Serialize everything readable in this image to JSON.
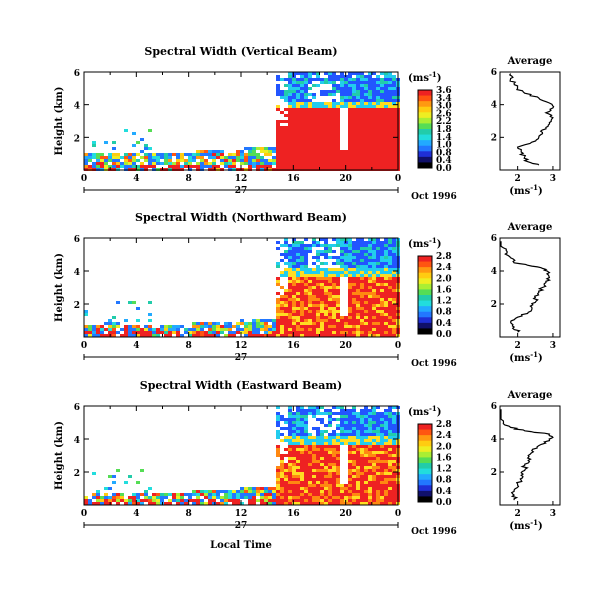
{
  "colors": {
    "scale": [
      "#000000",
      "#10106a",
      "#1f2fd6",
      "#2277ff",
      "#22aaff",
      "#22dddd",
      "#22ccaa",
      "#55dd55",
      "#aaee33",
      "#eeee22",
      "#ffcc11",
      "#ff9911",
      "#ff5511",
      "#ee2222"
    ],
    "red": "#ee2222",
    "cyan": "#22ccee",
    "blue": "#2255ff",
    "orange": "#ff8811",
    "yellow": "#ffdd22"
  },
  "shared": {
    "ylabel": "Height (km)",
    "xticks": [
      "0",
      "4",
      "8",
      "12",
      "16",
      "20",
      "0"
    ],
    "xunder": "27",
    "date": "Oct 1996",
    "ylim": [
      0,
      6
    ],
    "xlim": [
      0,
      24
    ],
    "unit": "(ms",
    "unit_exp": "-1",
    "unit_close": ")",
    "avg_title": "Average",
    "avg_xticks": [
      "2",
      "3"
    ],
    "avg_yticks": [
      "2",
      "4",
      "6"
    ],
    "xlabel": "Local Time"
  },
  "chart_data": [
    {
      "type": "heatmap",
      "title": "Spectral Width (Vertical Beam)",
      "yticks": [
        "2",
        "4",
        "6"
      ],
      "colorbar_ticks": [
        "3.6",
        "3.4",
        "3.0",
        "2.6",
        "2.2",
        "1.8",
        "1.4",
        "1.0",
        "0.8",
        "0.4",
        "0.0"
      ],
      "avg_profile": [
        [
          2.6,
          0.3
        ],
        [
          2.3,
          0.5
        ],
        [
          2.2,
          0.8
        ],
        [
          2.1,
          1.1
        ],
        [
          2.0,
          1.4
        ],
        [
          2.4,
          1.7
        ],
        [
          2.6,
          2.0
        ],
        [
          2.7,
          2.3
        ],
        [
          2.8,
          2.6
        ],
        [
          2.9,
          2.9
        ],
        [
          3.0,
          3.2
        ],
        [
          2.8,
          3.5
        ],
        [
          3.0,
          3.8
        ],
        [
          2.9,
          4.1
        ],
        [
          2.6,
          4.4
        ],
        [
          2.2,
          4.7
        ],
        [
          2.0,
          5.0
        ],
        [
          1.9,
          5.3
        ],
        [
          1.8,
          5.6
        ],
        [
          1.8,
          5.9
        ]
      ]
    },
    {
      "type": "heatmap",
      "title": "Spectral Width (Northward Beam)",
      "yticks": [
        "2",
        "4",
        "6"
      ],
      "colorbar_ticks": [
        "2.8",
        "2.4",
        "2.0",
        "1.6",
        "1.2",
        "0.8",
        "0.4",
        "0.0"
      ],
      "avg_profile": [
        [
          2.0,
          0.3
        ],
        [
          1.9,
          0.6
        ],
        [
          1.8,
          0.9
        ],
        [
          2.0,
          1.2
        ],
        [
          2.3,
          1.5
        ],
        [
          2.4,
          1.8
        ],
        [
          2.5,
          2.1
        ],
        [
          2.5,
          2.4
        ],
        [
          2.6,
          2.7
        ],
        [
          2.7,
          3.0
        ],
        [
          2.8,
          3.3
        ],
        [
          2.9,
          3.6
        ],
        [
          2.9,
          3.9
        ],
        [
          2.8,
          4.1
        ],
        [
          2.4,
          4.3
        ],
        [
          1.9,
          4.5
        ],
        [
          1.8,
          4.8
        ],
        [
          1.7,
          5.1
        ],
        [
          1.6,
          5.4
        ],
        [
          1.5,
          5.8
        ]
      ]
    },
    {
      "type": "heatmap",
      "title": "Spectral Width (Eastward Beam)",
      "yticks": [
        "2",
        "4",
        "6"
      ],
      "colorbar_ticks": [
        "2.8",
        "2.4",
        "2.0",
        "1.6",
        "1.2",
        "0.8",
        "0.4",
        "0.0"
      ],
      "avg_profile": [
        [
          1.9,
          0.3
        ],
        [
          1.9,
          0.6
        ],
        [
          1.9,
          0.9
        ],
        [
          2.0,
          1.2
        ],
        [
          2.1,
          1.5
        ],
        [
          2.1,
          1.8
        ],
        [
          2.2,
          2.1
        ],
        [
          2.2,
          2.4
        ],
        [
          2.3,
          2.7
        ],
        [
          2.3,
          3.0
        ],
        [
          2.4,
          3.3
        ],
        [
          2.6,
          3.6
        ],
        [
          2.9,
          3.9
        ],
        [
          3.0,
          4.1
        ],
        [
          2.9,
          4.3
        ],
        [
          2.2,
          4.5
        ],
        [
          1.8,
          4.7
        ],
        [
          1.6,
          5.0
        ],
        [
          1.5,
          5.4
        ],
        [
          1.4,
          5.8
        ]
      ]
    }
  ]
}
